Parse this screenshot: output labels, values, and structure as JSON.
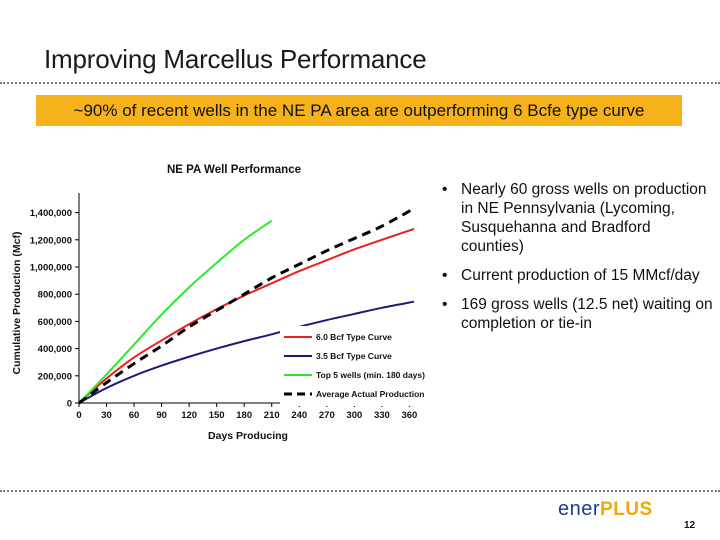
{
  "slide": {
    "title": "Improving Marcellus Performance",
    "banner": "~90% of recent wells in the NE PA area are outperforming 6 Bcfe type curve",
    "bullets": [
      "Nearly 60 gross wells on production in NE Pennsylvania (Lycoming, Susquehanna and Bradford counties)",
      "Current production of 15 MMcf/day",
      "169 gross wells (12.5 net) waiting on completion or tie-in"
    ],
    "bullet_glyph": "•",
    "logo_part1": "ener",
    "logo_part2": "PLUS",
    "page_number": "12"
  },
  "colors": {
    "banner": "#f5b21b",
    "logo_blue": "#1f3d8a",
    "logo_orange": "#f5a800"
  },
  "chart_data": {
    "type": "line",
    "title": "NE PA Well Performance",
    "xlabel": "Days Producing",
    "ylabel": "Cumulative Production (Mcf)",
    "xlim": [
      0,
      365
    ],
    "ylim": [
      0,
      1500000
    ],
    "xticks": [
      0,
      30,
      60,
      90,
      120,
      150,
      180,
      210,
      240,
      270,
      300,
      330,
      360
    ],
    "yticks": [
      0,
      200000,
      400000,
      600000,
      800000,
      1000000,
      1200000,
      1400000
    ],
    "ytick_labels": [
      "0",
      "200,000",
      "400,000",
      "600,000",
      "800,000",
      "1,000,000",
      "1,200,000",
      "1,400,000"
    ],
    "grid": false,
    "legend": "bottom-right",
    "series": [
      {
        "name": "6.0 Bcf Type Curve",
        "color": "#e8201f",
        "dash": "solid",
        "x": [
          0,
          30,
          60,
          90,
          120,
          150,
          180,
          210,
          240,
          270,
          300,
          330,
          365
        ],
        "y": [
          0,
          180000,
          335000,
          460000,
          580000,
          690000,
          790000,
          880000,
          970000,
          1050000,
          1130000,
          1200000,
          1280000
        ]
      },
      {
        "name": "3.5 Bcf Type Curve",
        "color": "#1b1b7a",
        "dash": "solid",
        "x": [
          0,
          30,
          60,
          90,
          120,
          150,
          180,
          210,
          240,
          270,
          300,
          330,
          365
        ],
        "y": [
          0,
          110000,
          200000,
          275000,
          340000,
          400000,
          455000,
          505000,
          560000,
          610000,
          655000,
          700000,
          745000
        ]
      },
      {
        "name": "Top 5 wells (min. 180 days)",
        "color": "#2ee82e",
        "dash": "solid",
        "x": [
          0,
          30,
          60,
          90,
          120,
          150,
          180,
          210
        ],
        "y": [
          0,
          210000,
          430000,
          650000,
          850000,
          1030000,
          1200000,
          1340000
        ]
      },
      {
        "name": "Average Actual Production",
        "color": "#000000",
        "dash": "dashed",
        "x": [
          0,
          30,
          60,
          90,
          120,
          150,
          180,
          210,
          240,
          270,
          300,
          330,
          365
        ],
        "y": [
          0,
          150000,
          290000,
          420000,
          560000,
          680000,
          800000,
          920000,
          1020000,
          1120000,
          1210000,
          1300000,
          1430000
        ]
      }
    ]
  }
}
